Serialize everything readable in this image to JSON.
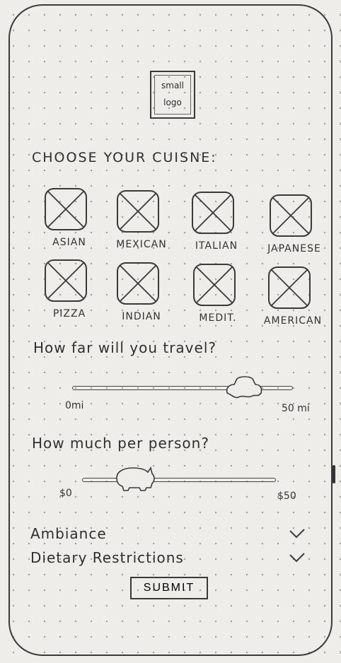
{
  "logo": {
    "line1": "small",
    "line2": "logo"
  },
  "cuisine": {
    "title": "CHOOSE YOUR CUISNE:",
    "items": [
      {
        "label": "ASIAN"
      },
      {
        "label": "MEXICAN"
      },
      {
        "label": "ITALIAN"
      },
      {
        "label": "JAPANESE"
      },
      {
        "label": "PIZZA"
      },
      {
        "label": "INDIAN"
      },
      {
        "label": "MEDIT."
      },
      {
        "label": "AMERICAN"
      }
    ]
  },
  "travel": {
    "title": "How far will you travel?",
    "min_label": "0mi",
    "max_label": "50 mi",
    "value_fraction": 0.78
  },
  "price": {
    "title": "How much per person?",
    "min_label": "$0",
    "max_label": "$50",
    "value_fraction": 0.27
  },
  "options": [
    {
      "label": "Ambiance",
      "icon": "chevron-down-icon"
    },
    {
      "label": "Dietary Restrictions",
      "icon": "chevron-down-icon"
    }
  ],
  "submit": {
    "label": "SUBMIT"
  },
  "colors": {
    "paper": "#efedea",
    "ink": "#2b2b2b"
  }
}
